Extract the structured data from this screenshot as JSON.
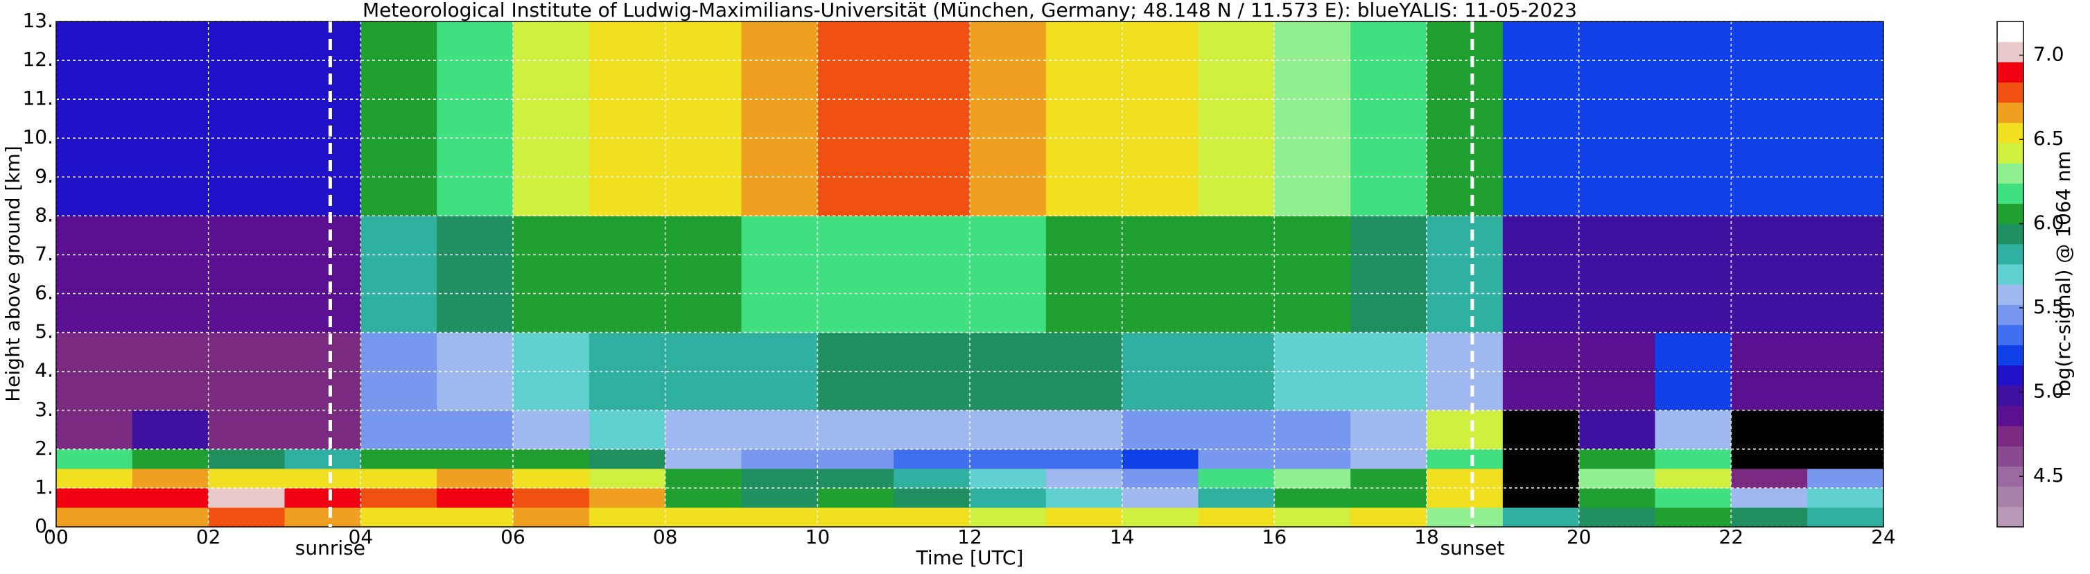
{
  "chart_data": {
    "type": "heatmap",
    "title": "Meteorological Institute of Ludwig-Maximilians-Universität (München, Germany; 48.148 N / 11.573 E):    blueYALIS: 11-05-2023",
    "x_label": "Time [UTC]",
    "y_label": "Height above ground [km]",
    "x_bins": [
      0,
      1,
      2,
      3,
      4,
      5,
      6,
      7,
      8,
      9,
      10,
      11,
      12,
      13,
      14,
      15,
      16,
      17,
      18,
      19,
      20,
      21,
      22,
      23,
      24
    ],
    "y_bins": [
      0,
      0.5,
      1,
      1.5,
      2,
      3,
      5,
      8,
      13
    ],
    "values": [
      [
        6.7,
        6.7,
        6.8,
        6.7,
        6.6,
        6.6,
        6.7,
        6.6,
        6.5,
        6.5,
        6.6,
        6.5,
        6.4,
        6.5,
        6.4,
        6.5,
        6.4,
        6.5,
        6.3,
        5.8,
        5.9,
        6.0,
        5.9,
        5.8
      ],
      [
        6.9,
        6.9,
        7.0,
        6.9,
        6.8,
        6.9,
        6.8,
        6.7,
        6.0,
        5.9,
        6.1,
        5.9,
        5.8,
        5.7,
        5.6,
        5.8,
        6.0,
        6.1,
        6.5,
        4.0,
        6.0,
        6.2,
        5.6,
        5.7
      ],
      [
        6.6,
        6.7,
        6.6,
        6.6,
        6.6,
        6.7,
        6.5,
        6.4,
        6.1,
        5.9,
        5.9,
        5.8,
        5.7,
        5.6,
        5.5,
        6.2,
        6.3,
        6.1,
        6.6,
        4.0,
        6.3,
        6.4,
        4.8,
        5.4
      ],
      [
        6.2,
        6.0,
        5.9,
        5.8,
        6.0,
        6.1,
        6.0,
        5.9,
        5.6,
        5.4,
        5.4,
        5.3,
        5.3,
        5.3,
        5.2,
        5.5,
        5.4,
        5.6,
        6.2,
        4.0,
        6.1,
        6.2,
        4.0,
        4.0
      ],
      [
        4.8,
        5.0,
        4.8,
        4.8,
        5.4,
        5.5,
        5.6,
        5.7,
        5.6,
        5.6,
        5.6,
        5.6,
        5.6,
        5.6,
        5.5,
        5.5,
        5.5,
        5.6,
        6.4,
        4.0,
        5.0,
        5.6,
        4.0,
        4.0
      ],
      [
        4.7,
        4.8,
        4.7,
        4.7,
        5.5,
        5.6,
        5.7,
        5.8,
        5.8,
        5.8,
        5.9,
        5.9,
        5.9,
        5.9,
        5.8,
        5.8,
        5.7,
        5.7,
        5.6,
        4.9,
        4.9,
        5.2,
        4.9,
        4.9
      ],
      [
        4.9,
        4.9,
        4.9,
        4.9,
        5.8,
        5.9,
        6.0,
        6.1,
        6.1,
        6.2,
        6.2,
        6.2,
        6.2,
        6.1,
        6.1,
        6.0,
        6.0,
        5.9,
        5.8,
        5.0,
        5.0,
        5.0,
        5.0,
        5.0
      ],
      [
        5.1,
        5.1,
        5.1,
        5.1,
        6.1,
        6.2,
        6.4,
        6.5,
        6.6,
        6.7,
        6.8,
        6.8,
        6.7,
        6.6,
        6.5,
        6.4,
        6.3,
        6.2,
        6.1,
        5.2,
        5.2,
        5.2,
        5.2,
        5.2
      ]
    ],
    "xlim": [
      0,
      24
    ],
    "ylim": [
      0,
      13
    ],
    "xticks": [
      {
        "value": 0,
        "label": "00"
      },
      {
        "value": 2,
        "label": "02"
      },
      {
        "value": 4,
        "label": "04"
      },
      {
        "value": 6,
        "label": "06"
      },
      {
        "value": 8,
        "label": "08"
      },
      10,
      12,
      14,
      16,
      18,
      20,
      22,
      24
    ],
    "yticks": [
      {
        "value": 0,
        "label": "0."
      },
      {
        "value": 1,
        "label": "1."
      },
      {
        "value": 2,
        "label": "2."
      },
      {
        "value": 3,
        "label": "3."
      },
      {
        "value": 4,
        "label": "4."
      },
      {
        "value": 5,
        "label": "5."
      },
      {
        "value": 6,
        "label": "6."
      },
      {
        "value": 7,
        "label": "7."
      },
      {
        "value": 8,
        "label": "8."
      },
      {
        "value": 9,
        "label": "9."
      },
      {
        "value": 10,
        "label": "10."
      },
      {
        "value": 11,
        "label": "11."
      },
      {
        "value": 12,
        "label": "12."
      },
      {
        "value": 13,
        "label": "13."
      }
    ],
    "grid": true,
    "annotations": [
      {
        "text": "sunrise",
        "x": 3.6
      },
      {
        "text": "sunset",
        "x": 18.6
      }
    ],
    "colorbar": {
      "label": "log(rc-signal) @ 1064 nm",
      "lim": [
        4.2,
        7.2
      ],
      "ticks": [
        4.5,
        {
          "value": 5,
          "label": "5.0"
        },
        5.5,
        {
          "value": 6,
          "label": "6.0"
        },
        6.5,
        {
          "value": 7,
          "label": "7.0"
        }
      ],
      "colors": [
        "#b89ab8",
        "#a882a8",
        "#9a6aa0",
        "#8a4a90",
        "#7a2a80",
        "#5a1090",
        "#4010a0",
        "#2010c8",
        "#1040e8",
        "#4070f0",
        "#7898f0",
        "#a0b8f0",
        "#60d0d0",
        "#30b0a0",
        "#209060",
        "#20a030",
        "#40e080",
        "#90f090",
        "#d0f040",
        "#f0e020",
        "#f0a020",
        "#f05010",
        "#f00010",
        "#e8c8c8",
        "#ffffff"
      ],
      "under_color": "#000000"
    }
  }
}
